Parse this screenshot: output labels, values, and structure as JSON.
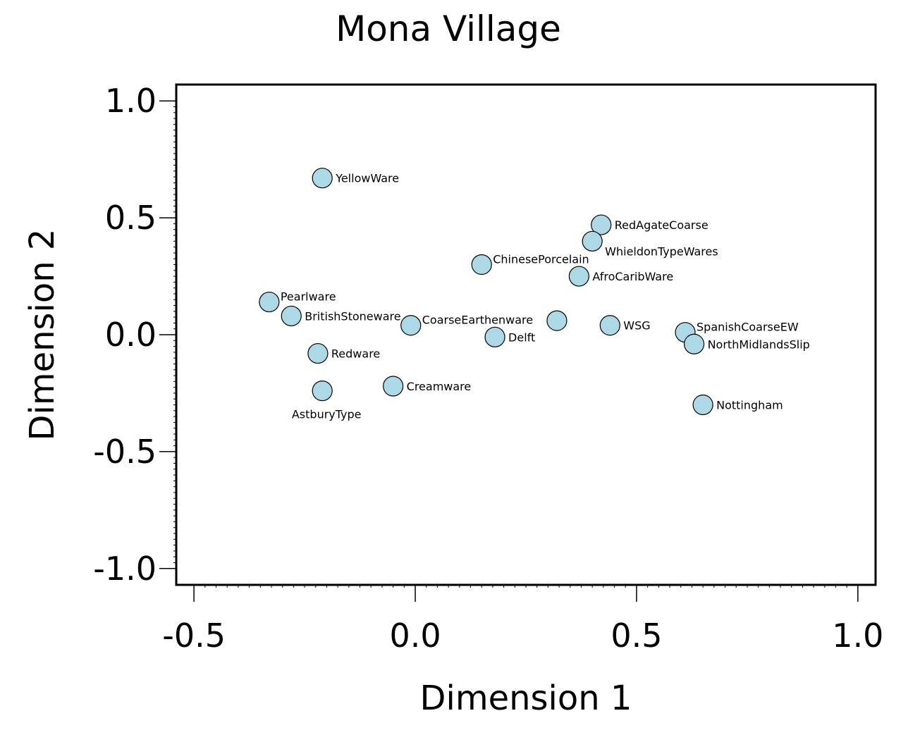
{
  "chart_data": {
    "type": "scatter",
    "title": "Mona Village",
    "xlabel": "Dimension 1",
    "ylabel": "Dimension 2",
    "xlim": [
      -0.54,
      1.04
    ],
    "ylim": [
      -1.07,
      1.07
    ],
    "xticks": [
      -0.5,
      0.0,
      0.5,
      1.0
    ],
    "yticks": [
      -1.0,
      -0.5,
      0.0,
      0.5,
      1.0
    ],
    "xtick_labels": [
      "-0.5",
      "0.0",
      "0.5",
      "1.0"
    ],
    "ytick_labels": [
      "-1.0",
      "-0.5",
      "0.0",
      "0.5",
      "1.0"
    ],
    "grid": false,
    "marker_color": "#add8e6",
    "marker_edge_color": "#000000",
    "points": [
      {
        "label": "YellowWare",
        "x": -0.21,
        "y": 0.67,
        "label_pos": "right"
      },
      {
        "label": "RedAgateCoarse",
        "x": 0.42,
        "y": 0.47,
        "label_pos": "right"
      },
      {
        "label": "WhieldonTypeWares",
        "x": 0.4,
        "y": 0.4,
        "label_pos": "right-below"
      },
      {
        "label": "ChinesePorcelain",
        "x": 0.15,
        "y": 0.3,
        "label_pos": "right-above"
      },
      {
        "label": "AfroCaribWare",
        "x": 0.37,
        "y": 0.25,
        "label_pos": "right"
      },
      {
        "label": "Pearlware",
        "x": -0.33,
        "y": 0.14,
        "label_pos": "right-above"
      },
      {
        "label": "BritishStoneware",
        "x": -0.28,
        "y": 0.08,
        "label_pos": "right"
      },
      {
        "label": "CoarseEarthenware",
        "x": -0.01,
        "y": 0.04,
        "label_pos": "right-above"
      },
      {
        "label": "",
        "x": 0.32,
        "y": 0.06,
        "label_pos": "none"
      },
      {
        "label": "WSG",
        "x": 0.44,
        "y": 0.04,
        "label_pos": "right"
      },
      {
        "label": "Delft",
        "x": 0.18,
        "y": -0.01,
        "label_pos": "right"
      },
      {
        "label": "SpanishCoarseEW",
        "x": 0.61,
        "y": 0.01,
        "label_pos": "right-above"
      },
      {
        "label": "NorthMidlandsSlip",
        "x": 0.63,
        "y": -0.04,
        "label_pos": "right"
      },
      {
        "label": "Redware",
        "x": -0.22,
        "y": -0.08,
        "label_pos": "right"
      },
      {
        "label": "AstburyType",
        "x": -0.21,
        "y": -0.24,
        "label_pos": "below"
      },
      {
        "label": "Creamware",
        "x": -0.05,
        "y": -0.22,
        "label_pos": "right"
      },
      {
        "label": "Nottingham",
        "x": 0.65,
        "y": -0.3,
        "label_pos": "right"
      }
    ]
  }
}
